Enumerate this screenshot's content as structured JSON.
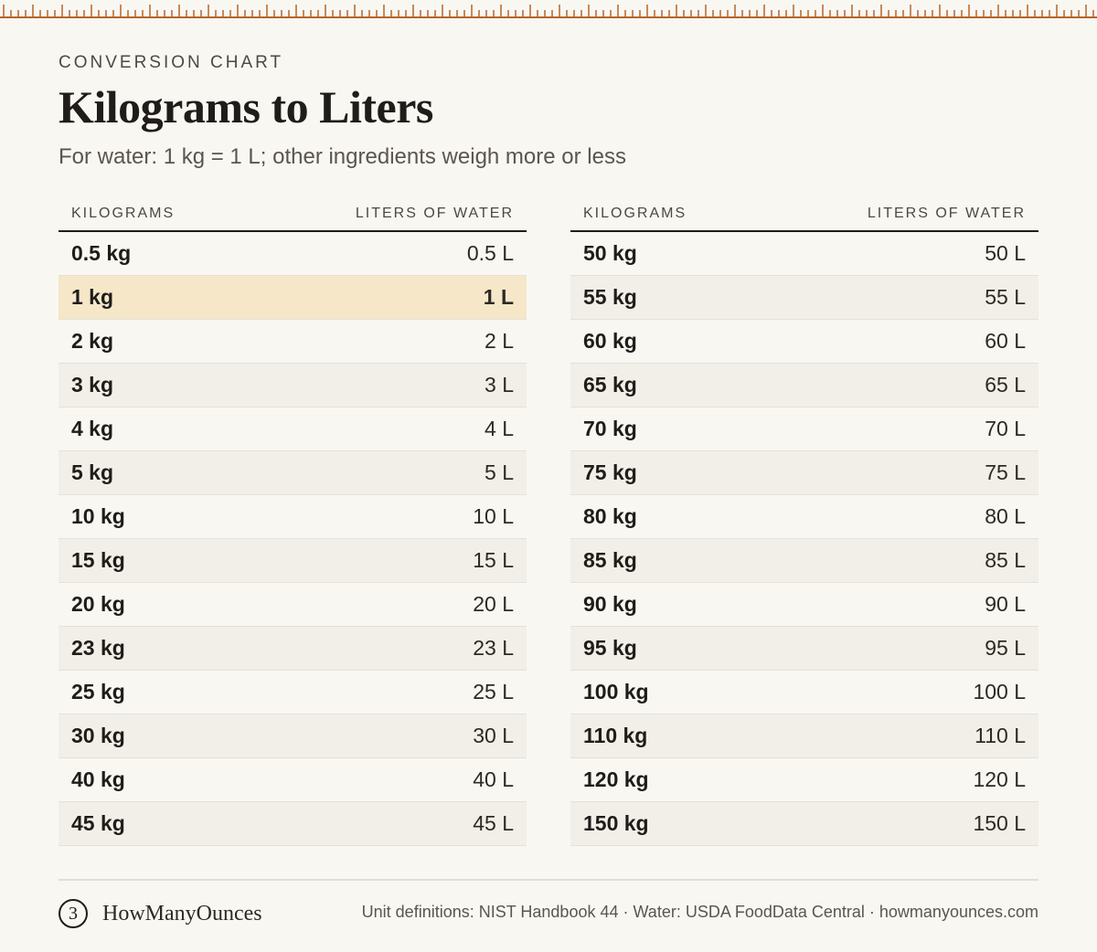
{
  "header": {
    "eyebrow": "CONVERSION CHART",
    "title": "Kilograms to Liters",
    "subtitle": "For water: 1 kg = 1 L; other ingredients weigh more or less"
  },
  "table": {
    "col_kg": "KILOGRAMS",
    "col_l": "LITERS OF WATER",
    "left": [
      {
        "kg": "0.5 kg",
        "l": "0.5 L"
      },
      {
        "kg": "1 kg",
        "l": "1 L"
      },
      {
        "kg": "2 kg",
        "l": "2 L"
      },
      {
        "kg": "3 kg",
        "l": "3 L"
      },
      {
        "kg": "4 kg",
        "l": "4 L"
      },
      {
        "kg": "5 kg",
        "l": "5 L"
      },
      {
        "kg": "10 kg",
        "l": "10 L"
      },
      {
        "kg": "15 kg",
        "l": "15 L"
      },
      {
        "kg": "20 kg",
        "l": "20 L"
      },
      {
        "kg": "23 kg",
        "l": "23 L"
      },
      {
        "kg": "25 kg",
        "l": "25 L"
      },
      {
        "kg": "30 kg",
        "l": "30 L"
      },
      {
        "kg": "40 kg",
        "l": "40 L"
      },
      {
        "kg": "45 kg",
        "l": "45 L"
      }
    ],
    "right": [
      {
        "kg": "50 kg",
        "l": "50 L"
      },
      {
        "kg": "55 kg",
        "l": "55 L"
      },
      {
        "kg": "60 kg",
        "l": "60 L"
      },
      {
        "kg": "65 kg",
        "l": "65 L"
      },
      {
        "kg": "70 kg",
        "l": "70 L"
      },
      {
        "kg": "75 kg",
        "l": "75 L"
      },
      {
        "kg": "80 kg",
        "l": "80 L"
      },
      {
        "kg": "85 kg",
        "l": "85 L"
      },
      {
        "kg": "90 kg",
        "l": "90 L"
      },
      {
        "kg": "95 kg",
        "l": "95 L"
      },
      {
        "kg": "100 kg",
        "l": "100 L"
      },
      {
        "kg": "110 kg",
        "l": "110 L"
      },
      {
        "kg": "120 kg",
        "l": "120 L"
      },
      {
        "kg": "150 kg",
        "l": "150 L"
      }
    ],
    "highlight_color": "#f5e7c8"
  },
  "footer": {
    "logo_glyph": "3",
    "brand": "HowManyOunces",
    "sources": "Unit definitions: NIST Handbook 44 · Water: USDA FoodData Central · howmanyounces.com"
  },
  "colors": {
    "ruler": "#b5652a",
    "background": "#f9f7f2"
  }
}
